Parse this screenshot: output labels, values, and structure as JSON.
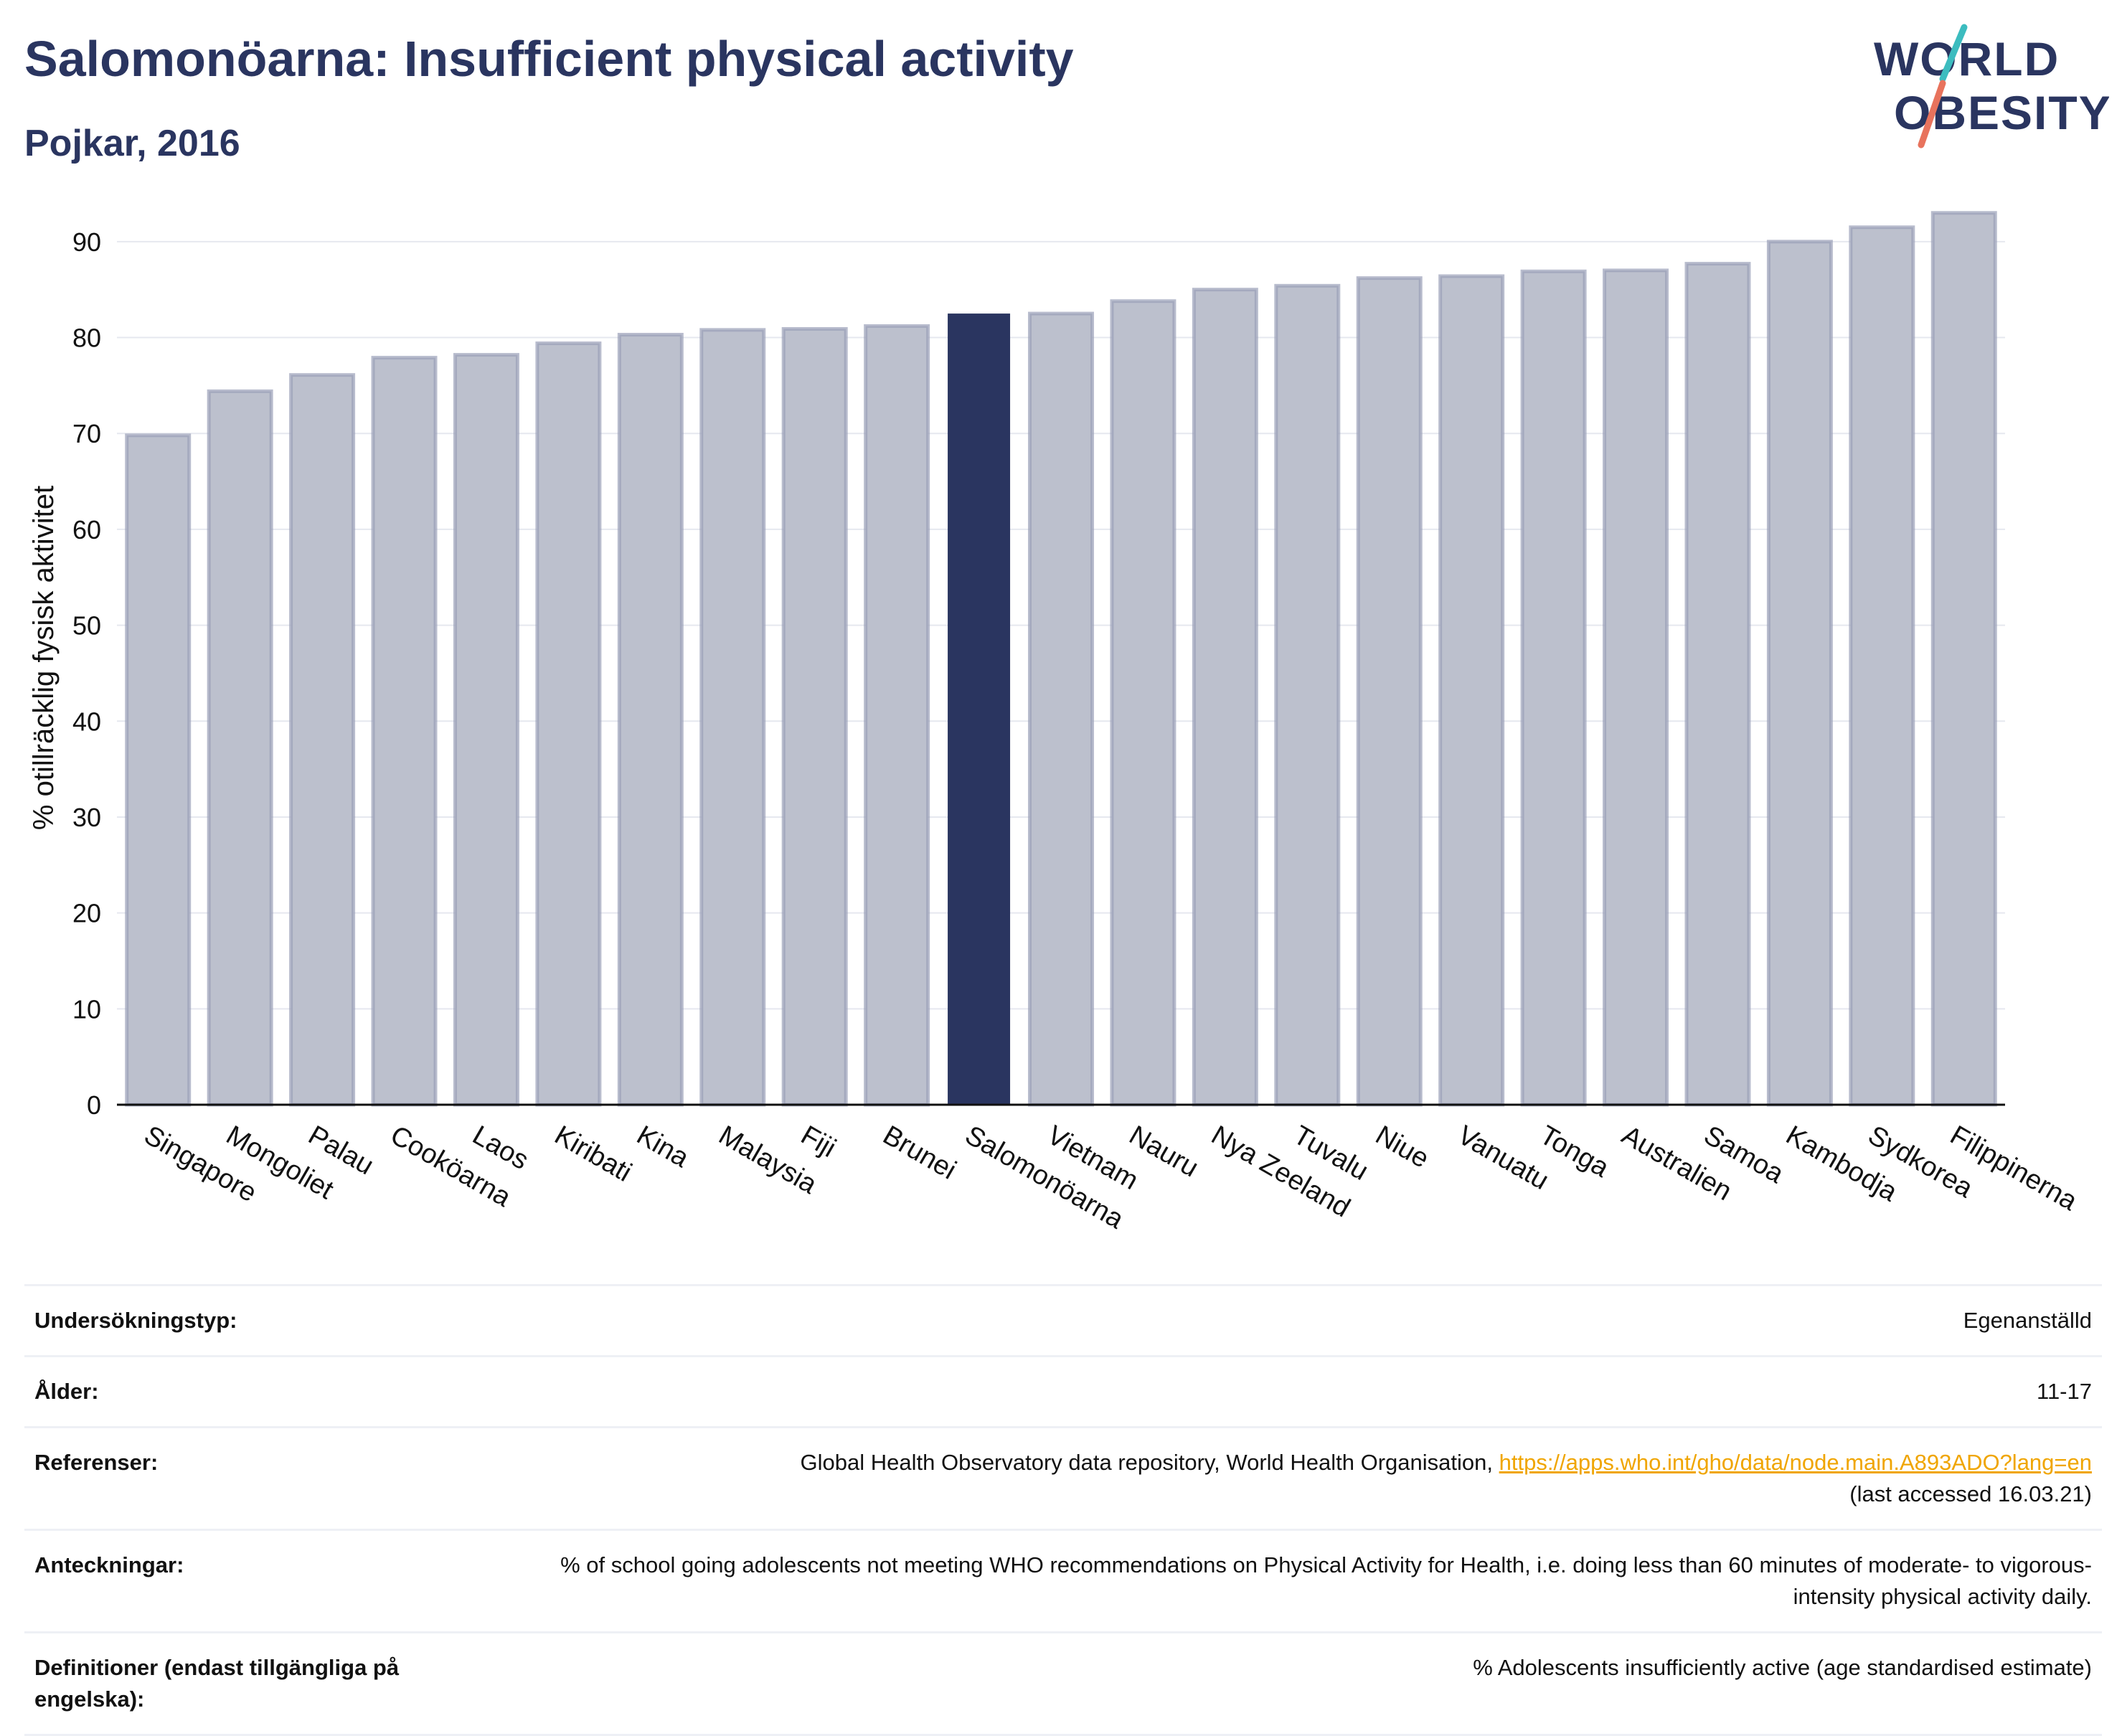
{
  "title": "Salomonöarna: Insufficient physical activity",
  "subtitle": "Pojkar, 2016",
  "logo": {
    "line1": "WORLD",
    "line2": "OBESITY"
  },
  "colors": {
    "highlight": "#2a3560",
    "bar": "#bcc0cd",
    "bar_edge": "#9aa0b8",
    "text": "#2a3560",
    "link": "#f0a500"
  },
  "chart_data": {
    "type": "bar",
    "ylabel": "% otillräcklig fysisk aktivitet",
    "xlabel": "",
    "ylim": [
      0,
      95
    ],
    "yticks": [
      0,
      10,
      20,
      30,
      40,
      50,
      60,
      70,
      80,
      90
    ],
    "grid": true,
    "highlight": "Salomonöarna",
    "categories": [
      "Singapore",
      "Mongoliet",
      "Palau",
      "Cooköarna",
      "Laos",
      "Kiribati",
      "Kina",
      "Malaysia",
      "Fiji",
      "Brunei",
      "Salomonöarna",
      "Vietnam",
      "Nauru",
      "Nya Zeeland",
      "Tuvalu",
      "Niue",
      "Vanuatu",
      "Tonga",
      "Australien",
      "Samoa",
      "Kambodja",
      "Sydkorea",
      "Filippinerna"
    ],
    "values": [
      69.8,
      74.4,
      76.1,
      77.9,
      78.2,
      79.4,
      80.3,
      80.8,
      80.9,
      81.2,
      82.5,
      82.5,
      83.8,
      85.0,
      85.4,
      86.2,
      86.4,
      86.9,
      87.0,
      87.7,
      90.0,
      91.5,
      93.0
    ]
  },
  "table": {
    "rows": [
      {
        "key": "Undersökningstyp:",
        "value": "Egenanställd"
      },
      {
        "key": "Ålder:",
        "value": "11-17"
      },
      {
        "key": "Referenser:",
        "value": "Global Health Observatory data repository, World Health Organisation, ",
        "link": "https://apps.who.int/gho/data/node.main.A893ADO?lang=en",
        "value2": "(last accessed 16.03.21)"
      },
      {
        "key": "Anteckningar:",
        "value": "% of school going adolescents not meeting WHO recommendations on Physical Activity for Health, i.e. doing less than 60 minutes of moderate- to vigorous-intensity physical activity daily."
      },
      {
        "key": "Definitioner (endast tillgängliga på engelska):",
        "value": "% Adolescents insufficiently active (age standardised estimate)"
      }
    ]
  }
}
